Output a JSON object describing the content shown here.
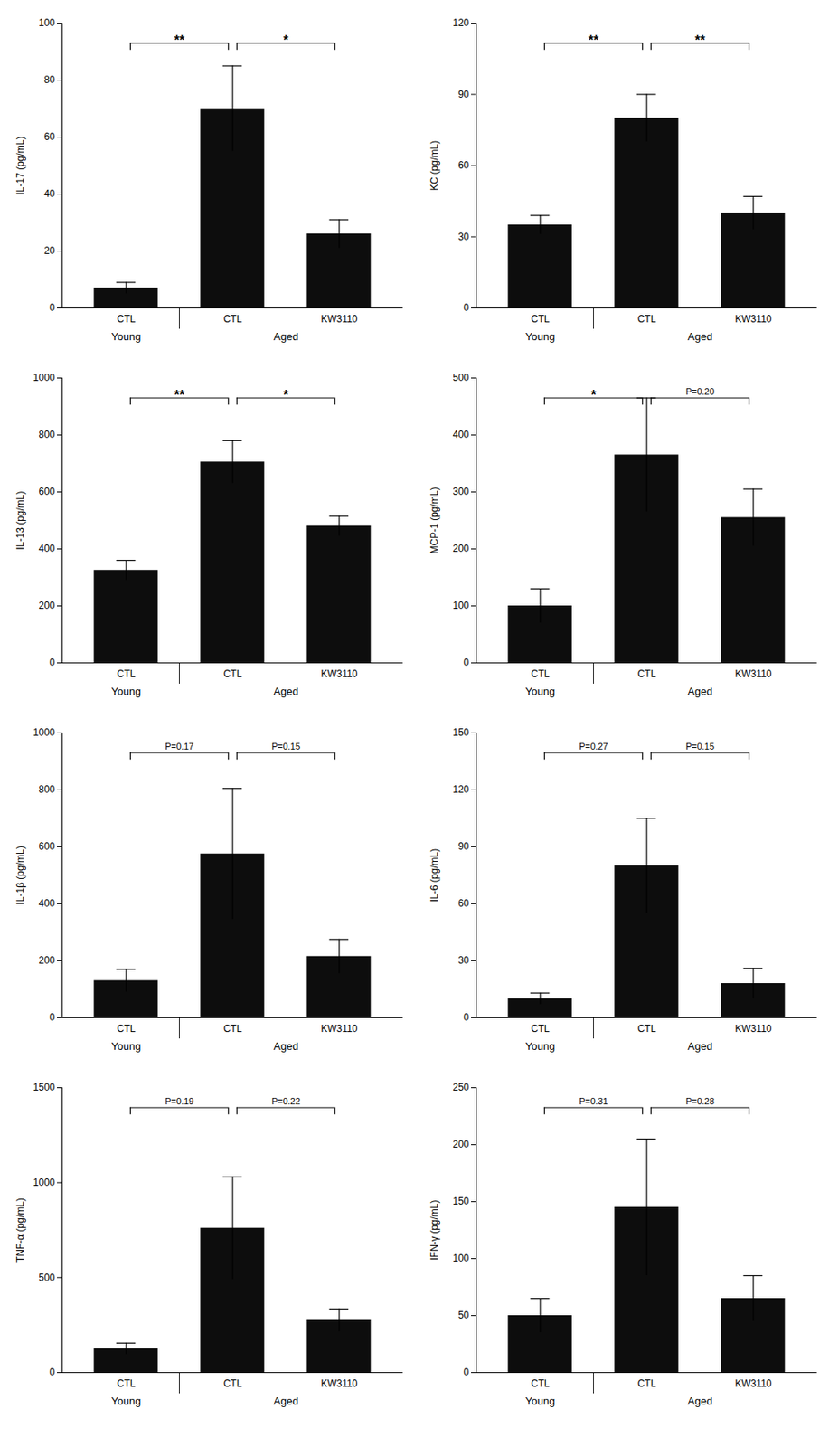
{
  "chart_data": [
    {
      "type": "bar",
      "ylabel": "IL-17 (pg/mL)",
      "categories": [
        "CTL",
        "CTL",
        "KW3110"
      ],
      "values": [
        7,
        70,
        26
      ],
      "errors": [
        2,
        15,
        5
      ],
      "color": "#0d0d0d",
      "ylim": [
        0,
        100
      ],
      "yticks": [
        0,
        20,
        40,
        60,
        80,
        100
      ],
      "groups": [
        {
          "label": "Young",
          "from": 0,
          "to": 0
        },
        {
          "label": "Aged",
          "from": 1,
          "to": 2
        }
      ],
      "annotations": [
        {
          "label": "**",
          "from": 0,
          "to": 1
        },
        {
          "label": "*",
          "from": 1,
          "to": 2
        }
      ]
    },
    {
      "type": "bar",
      "ylabel": "KC (pg/mL)",
      "categories": [
        "CTL",
        "CTL",
        "KW3110"
      ],
      "values": [
        35,
        80,
        40
      ],
      "errors": [
        4,
        10,
        7
      ],
      "color": "#0d0d0d",
      "ylim": [
        0,
        120
      ],
      "yticks": [
        0,
        30,
        60,
        90,
        120
      ],
      "groups": [
        {
          "label": "Young",
          "from": 0,
          "to": 0
        },
        {
          "label": "Aged",
          "from": 1,
          "to": 2
        }
      ],
      "annotations": [
        {
          "label": "**",
          "from": 0,
          "to": 1
        },
        {
          "label": "**",
          "from": 1,
          "to": 2
        }
      ]
    },
    {
      "type": "bar",
      "ylabel": "IL-13 (pg/mL)",
      "categories": [
        "CTL",
        "CTL",
        "KW3110"
      ],
      "values": [
        325,
        705,
        480
      ],
      "errors": [
        35,
        75,
        35
      ],
      "color": "#0d0d0d",
      "ylim": [
        0,
        1000
      ],
      "yticks": [
        0,
        200,
        400,
        600,
        800,
        1000
      ],
      "groups": [
        {
          "label": "Young",
          "from": 0,
          "to": 0
        },
        {
          "label": "Aged",
          "from": 1,
          "to": 2
        }
      ],
      "annotations": [
        {
          "label": "**",
          "from": 0,
          "to": 1
        },
        {
          "label": "*",
          "from": 1,
          "to": 2
        }
      ]
    },
    {
      "type": "bar",
      "ylabel": "MCP-1 (pg/mL)",
      "categories": [
        "CTL",
        "CTL",
        "KW3110"
      ],
      "values": [
        100,
        365,
        255
      ],
      "errors": [
        30,
        100,
        50
      ],
      "color": "#0d0d0d",
      "ylim": [
        0,
        500
      ],
      "yticks": [
        0,
        100,
        200,
        300,
        400,
        500
      ],
      "groups": [
        {
          "label": "Young",
          "from": 0,
          "to": 0
        },
        {
          "label": "Aged",
          "from": 1,
          "to": 2
        }
      ],
      "annotations": [
        {
          "label": "*",
          "from": 0,
          "to": 1
        },
        {
          "label": "P=0.20",
          "from": 1,
          "to": 2
        }
      ]
    },
    {
      "type": "bar",
      "ylabel": "IL-1β (pg/mL)",
      "categories": [
        "CTL",
        "CTL",
        "KW3110"
      ],
      "values": [
        130,
        575,
        215
      ],
      "errors": [
        40,
        230,
        60
      ],
      "color": "#0d0d0d",
      "ylim": [
        0,
        1000
      ],
      "yticks": [
        0,
        200,
        400,
        600,
        800,
        1000
      ],
      "groups": [
        {
          "label": "Young",
          "from": 0,
          "to": 0
        },
        {
          "label": "Aged",
          "from": 1,
          "to": 2
        }
      ],
      "annotations": [
        {
          "label": "P=0.17",
          "from": 0,
          "to": 1
        },
        {
          "label": "P=0.15",
          "from": 1,
          "to": 2
        }
      ]
    },
    {
      "type": "bar",
      "ylabel": "IL-6 (pg/mL)",
      "categories": [
        "CTL",
        "CTL",
        "KW3110"
      ],
      "values": [
        10,
        80,
        18
      ],
      "errors": [
        3,
        25,
        8
      ],
      "color": "#0d0d0d",
      "ylim": [
        0,
        150
      ],
      "yticks": [
        0,
        30,
        60,
        90,
        120,
        150
      ],
      "groups": [
        {
          "label": "Young",
          "from": 0,
          "to": 0
        },
        {
          "label": "Aged",
          "from": 1,
          "to": 2
        }
      ],
      "annotations": [
        {
          "label": "P=0.27",
          "from": 0,
          "to": 1
        },
        {
          "label": "P=0.15",
          "from": 1,
          "to": 2
        }
      ]
    },
    {
      "type": "bar",
      "ylabel": "TNF-α (pg/mL)",
      "categories": [
        "CTL",
        "CTL",
        "KW3110"
      ],
      "values": [
        125,
        760,
        275
      ],
      "errors": [
        30,
        270,
        60
      ],
      "color": "#0d0d0d",
      "ylim": [
        0,
        1500
      ],
      "yticks": [
        0,
        500,
        1000,
        1500
      ],
      "groups": [
        {
          "label": "Young",
          "from": 0,
          "to": 0
        },
        {
          "label": "Aged",
          "from": 1,
          "to": 2
        }
      ],
      "annotations": [
        {
          "label": "P=0.19",
          "from": 0,
          "to": 1
        },
        {
          "label": "P=0.22",
          "from": 1,
          "to": 2
        }
      ]
    },
    {
      "type": "bar",
      "ylabel": "IFN-γ (pg/mL)",
      "categories": [
        "CTL",
        "CTL",
        "KW3110"
      ],
      "values": [
        50,
        145,
        65
      ],
      "errors": [
        15,
        60,
        20
      ],
      "color": "#0d0d0d",
      "ylim": [
        0,
        250
      ],
      "yticks": [
        0,
        50,
        100,
        150,
        200,
        250
      ],
      "groups": [
        {
          "label": "Young",
          "from": 0,
          "to": 0
        },
        {
          "label": "Aged",
          "from": 1,
          "to": 2
        }
      ],
      "annotations": [
        {
          "label": "P=0.31",
          "from": 0,
          "to": 1
        },
        {
          "label": "P=0.28",
          "from": 1,
          "to": 2
        }
      ]
    }
  ]
}
